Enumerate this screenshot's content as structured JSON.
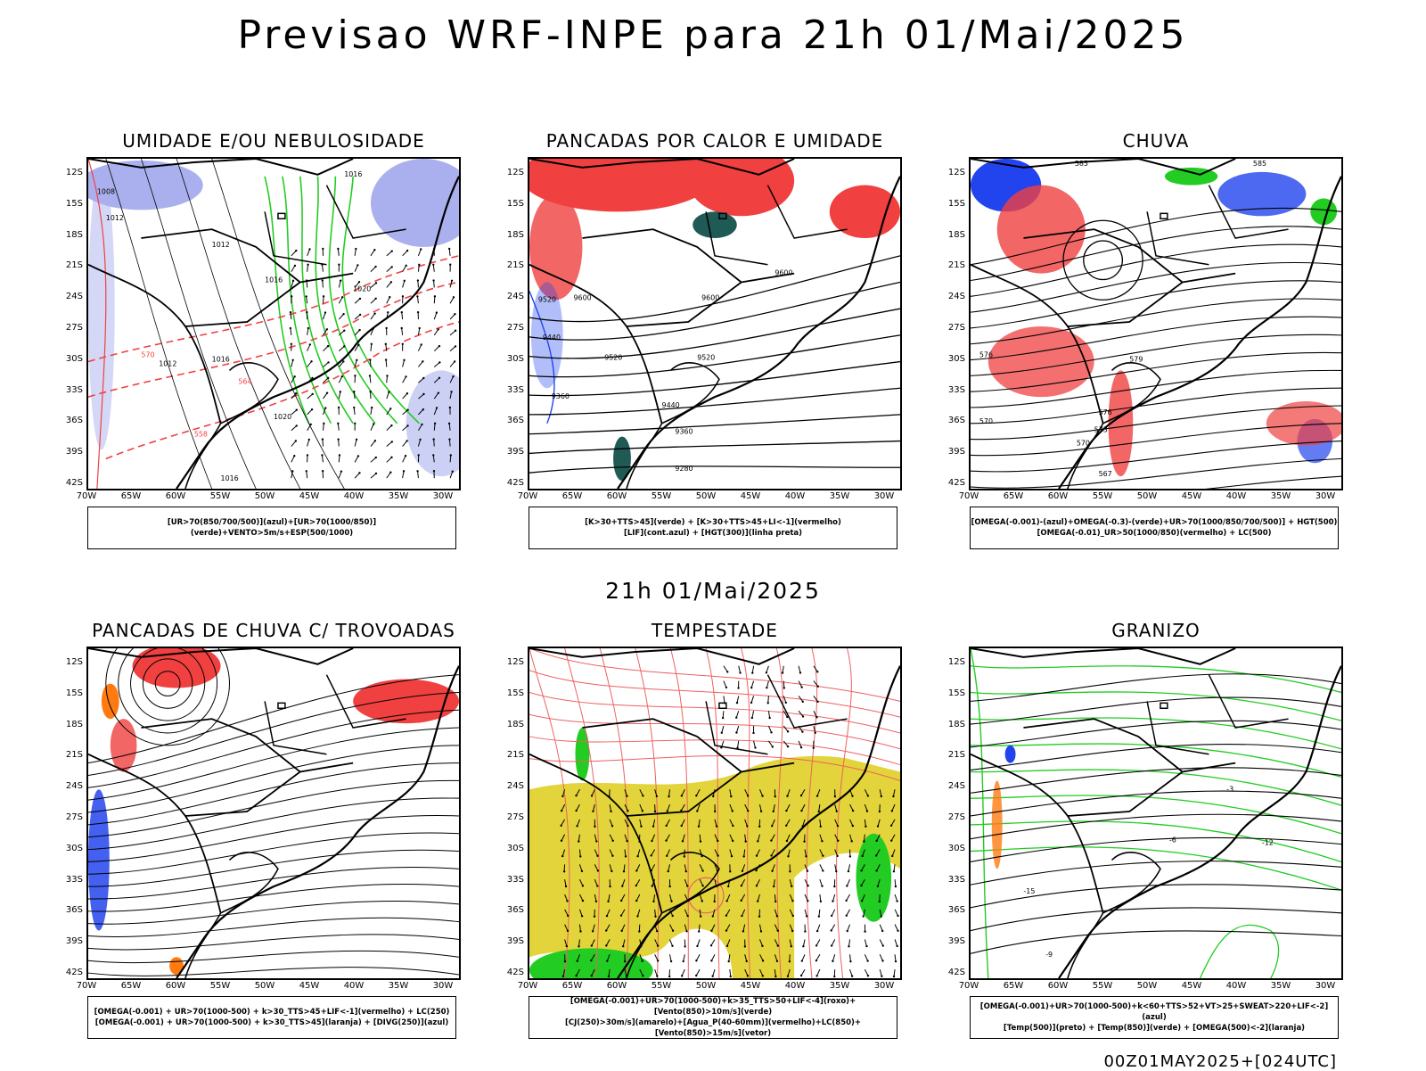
{
  "main_title": "Previsao WRF-INPE  para 21h 01/Mai/2025",
  "subtitle": "21h 01/Mai/2025",
  "footer": "00Z01MAY2025+[024UTC]",
  "axes": {
    "lat_labels": [
      "12S",
      "15S",
      "18S",
      "21S",
      "24S",
      "27S",
      "30S",
      "33S",
      "36S",
      "39S",
      "42S"
    ],
    "lon_labels": [
      "70W",
      "65W",
      "60W",
      "55W",
      "50W",
      "45W",
      "40W",
      "35W",
      "30W"
    ]
  },
  "panels": [
    {
      "id": "p1",
      "title": "UMIDADE E/OU NEBULOSIDADE",
      "legend": [
        "[UR>70(850/700/500)](azul)+[UR>70(1000/850)](verde)+VENTO>5m/s+ESP(500/1000)"
      ]
    },
    {
      "id": "p2",
      "title": "PANCADAS POR CALOR E UMIDADE",
      "legend": [
        "[K>30+TTS>45](verde) + [K>30+TTS>45+LI<-1](vermelho)",
        "[LIF](cont.azul) + [HGT(300)](linha preta)"
      ]
    },
    {
      "id": "p3",
      "title": "CHUVA",
      "legend": [
        "[OMEGA(-0.001)-(azul)+OMEGA(-0.3)-(verde)+UR>70(1000/850/700/500)] + HGT(500)",
        "[OMEGA(-0.01)_UR>50(1000/850)(vermelho) + LC(500)"
      ]
    },
    {
      "id": "p4",
      "title": "PANCADAS DE CHUVA C/ TROVOADAS",
      "legend": [
        "[OMEGA(-0.001) + UR>70(1000-500) + k>30_TTS>45+LIF<-1](vermelho) + LC(250)",
        "[OMEGA(-0.001) + UR>70(1000-500) + k>30_TTS>45](laranja) + [DIVG(250)](azul)"
      ]
    },
    {
      "id": "p5",
      "title": "TEMPESTADE",
      "legend": [
        "[OMEGA(-0.001)+UR>70(1000-500)+k>35_TTS>50+LIF<-4](roxo)+[Vento(850)>10m/s](verde)",
        "[CJ(250)>30m/s](amarelo)+[Agua_P(40-60mm)](vermelho)+LC(850)+[Vento(850)>15m/s](vetor)"
      ]
    },
    {
      "id": "p6",
      "title": "GRANIZO",
      "legend": [
        "[OMEGA(-0.001)+UR>70(1000-500)+k<60+TTS>52+VT>25+SWEAT>220+LIF<-2](azul)",
        "[Temp(500)](preto) + [Temp(850)](verde) + [OMEGA(500)<-2](laranja)"
      ]
    }
  ],
  "contour_labels": {
    "p1": [
      "1008",
      "1012",
      "1016",
      "1020",
      "570",
      "576",
      "564",
      "558"
    ],
    "p2": [
      "9520",
      "9600",
      "9440",
      "9360",
      "9280"
    ],
    "p3": [
      "585",
      "579",
      "576",
      "573",
      "570",
      "567"
    ],
    "p6": [
      "-3",
      "-6",
      "-9",
      "-12",
      "-15"
    ]
  },
  "colors": {
    "red": "#f04040",
    "green": "#22cc22",
    "blue": "#2244ee",
    "lavender": "#aab0ee",
    "yellow": "#e2d43a",
    "darkteal": "#1f5a55",
    "orange": "#ff7a10",
    "salmon": "#ee6060"
  }
}
